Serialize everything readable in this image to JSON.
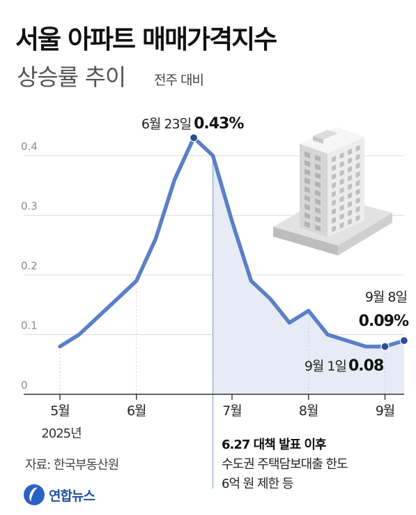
{
  "header": {
    "title": "서울 아파트 매매가격지수",
    "subtitle": "상승률 추이",
    "subtitle_note": "전주 대비"
  },
  "chart_data": {
    "type": "line",
    "title": "서울 아파트 매매가격지수",
    "subtitle": "상승률 추이",
    "unit_note": "전주 대비",
    "x_tick_labels": [
      "5월",
      "6월",
      "7월",
      "8월",
      "9월"
    ],
    "x_year_label": "2025년",
    "y_ticks": [
      0,
      0.1,
      0.2,
      0.3,
      0.4
    ],
    "y_tick_labels": [
      "0",
      "0.1",
      "0.2",
      "0.3",
      "0.4"
    ],
    "ylim": [
      0,
      0.45
    ],
    "grid": true,
    "series": [
      {
        "values": [
          {
            "date": "2025-05-05",
            "y": 0.08
          },
          {
            "date": "2025-05-12",
            "y": 0.1
          },
          {
            "date": "2025-05-19",
            "y": 0.13
          },
          {
            "date": "2025-05-26",
            "y": 0.16
          },
          {
            "date": "2025-06-02",
            "y": 0.19
          },
          {
            "date": "2025-06-09",
            "y": 0.26
          },
          {
            "date": "2025-06-16",
            "y": 0.36
          },
          {
            "date": "2025-06-23",
            "y": 0.43
          },
          {
            "date": "2025-06-30",
            "y": 0.4
          },
          {
            "date": "2025-07-07",
            "y": 0.29
          },
          {
            "date": "2025-07-14",
            "y": 0.19
          },
          {
            "date": "2025-07-21",
            "y": 0.16
          },
          {
            "date": "2025-07-28",
            "y": 0.12
          },
          {
            "date": "2025-08-04",
            "y": 0.14
          },
          {
            "date": "2025-08-11",
            "y": 0.1
          },
          {
            "date": "2025-08-18",
            "y": 0.09
          },
          {
            "date": "2025-08-25",
            "y": 0.08
          },
          {
            "date": "2025-09-01",
            "y": 0.08
          },
          {
            "date": "2025-09-08",
            "y": 0.09
          }
        ]
      }
    ],
    "annotations": [
      {
        "date_label": "6월 23일",
        "value_label": "0.43%"
      },
      {
        "date_label": "9월 1일",
        "value_label": "0.08"
      },
      {
        "date_label": "9월 8일",
        "value_label": "0.09%"
      }
    ],
    "policy_note": {
      "title": "6.27 대책 발표 이후",
      "lines": [
        "수도권 주택담보대출 한도",
        "6억 원 제한 등"
      ]
    },
    "colors": {
      "line": "#5a7fc8",
      "point": "#2b4f95",
      "shade": "#e6ebf5",
      "policy_line": "#8fa5cf",
      "grid": "#dcdcdc"
    }
  },
  "source": "자료: 한국부동산원",
  "logo": {
    "icon": "yonhap-logo-icon",
    "text": "연합뉴스"
  },
  "illustration": {
    "icon": "apartment-building-icon"
  }
}
